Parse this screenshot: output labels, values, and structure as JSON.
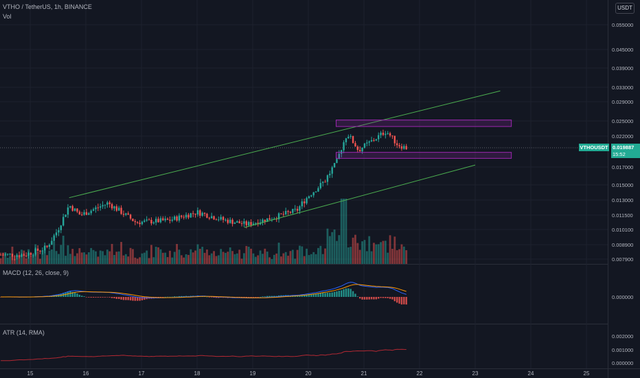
{
  "header": {
    "symbol_line": "VTHO / TetherUS, 1h, BINANCE",
    "vol_label": "Vol",
    "currency_badge": "USDT"
  },
  "price_tag": {
    "symbol": "VTHOUSDT",
    "price": "0.019887",
    "countdown": "15:52"
  },
  "colors": {
    "background": "#131722",
    "up": "#26a69a",
    "down": "#ef5350",
    "trendline": "#4caf50",
    "zone": "#9c27b0",
    "macd": "#2962ff",
    "signal": "#ff9800",
    "atr": "#b22833"
  },
  "chart_data": [
    {
      "type": "candlestick",
      "pane": "price",
      "symbol": "VTHO / TetherUS",
      "interval": "1h",
      "exchange": "BINANCE",
      "y_ticks": [
        "0.055000",
        "0.045000",
        "0.039000",
        "0.033000",
        "0.029000",
        "0.025000",
        "0.022000",
        "0.019887",
        "0.017000",
        "0.015000",
        "0.013000",
        "0.011500",
        "0.010100",
        "0.008900",
        "0.007900"
      ],
      "x_ticks": [
        "15",
        "16",
        "17",
        "18",
        "19",
        "20",
        "21",
        "22",
        "23",
        "24",
        "25"
      ],
      "last_price": 0.019887,
      "ohlc_overview": [
        {
          "day": "14.9",
          "price": 0.0082
        },
        {
          "day": "15.3",
          "price": 0.0087
        },
        {
          "day": "15.5",
          "price": 0.0101
        },
        {
          "day": "15.7",
          "price": 0.0125
        },
        {
          "day": "15.9",
          "price": 0.0115
        },
        {
          "day": "16.4",
          "price": 0.0127
        },
        {
          "day": "16.9",
          "price": 0.0108
        },
        {
          "day": "17.5",
          "price": 0.011
        },
        {
          "day": "18.0",
          "price": 0.0118
        },
        {
          "day": "18.5",
          "price": 0.011
        },
        {
          "day": "18.9",
          "price": 0.0106
        },
        {
          "day": "19.4",
          "price": 0.0113
        },
        {
          "day": "19.8",
          "price": 0.012
        },
        {
          "day": "20.0",
          "price": 0.0135
        },
        {
          "day": "20.3",
          "price": 0.0155
        },
        {
          "day": "20.5",
          "price": 0.0175
        },
        {
          "day": "20.7",
          "price": 0.0225
        },
        {
          "day": "20.9",
          "price": 0.0195
        },
        {
          "day": "21.2",
          "price": 0.0215
        },
        {
          "day": "21.4",
          "price": 0.023
        },
        {
          "day": "21.6",
          "price": 0.0205
        },
        {
          "day": "21.75",
          "price": 0.0199
        }
      ],
      "annotations": {
        "channel_upper": [
          {
            "day": 15.7,
            "price": 0.0133
          },
          {
            "day": 23.45,
            "price": 0.032
          }
        ],
        "channel_lower": [
          {
            "day": 18.85,
            "price": 0.0103
          },
          {
            "day": 23.0,
            "price": 0.0173
          }
        ],
        "resistance_zone": {
          "from_day": 20.5,
          "to_day": 23.65,
          "price_low": 0.0239,
          "price_high": 0.0252
        },
        "support_zone": {
          "from_day": 20.5,
          "to_day": 23.65,
          "price_low": 0.0183,
          "price_high": 0.0192
        }
      }
    },
    {
      "type": "bar",
      "pane": "volume",
      "label": "Vol"
    },
    {
      "type": "line",
      "pane": "macd",
      "label": "MACD (12, 26, close, 9)",
      "y_ticks": [
        "0.000000"
      ],
      "series": [
        {
          "name": "MACD"
        },
        {
          "name": "Signal"
        },
        {
          "name": "Histogram"
        }
      ]
    },
    {
      "type": "line",
      "pane": "atr",
      "label": "ATR (14, RMA)",
      "y_ticks": [
        "0.002000",
        "0.001000",
        "0.000000"
      ],
      "series": [
        {
          "name": "ATR"
        }
      ]
    }
  ]
}
